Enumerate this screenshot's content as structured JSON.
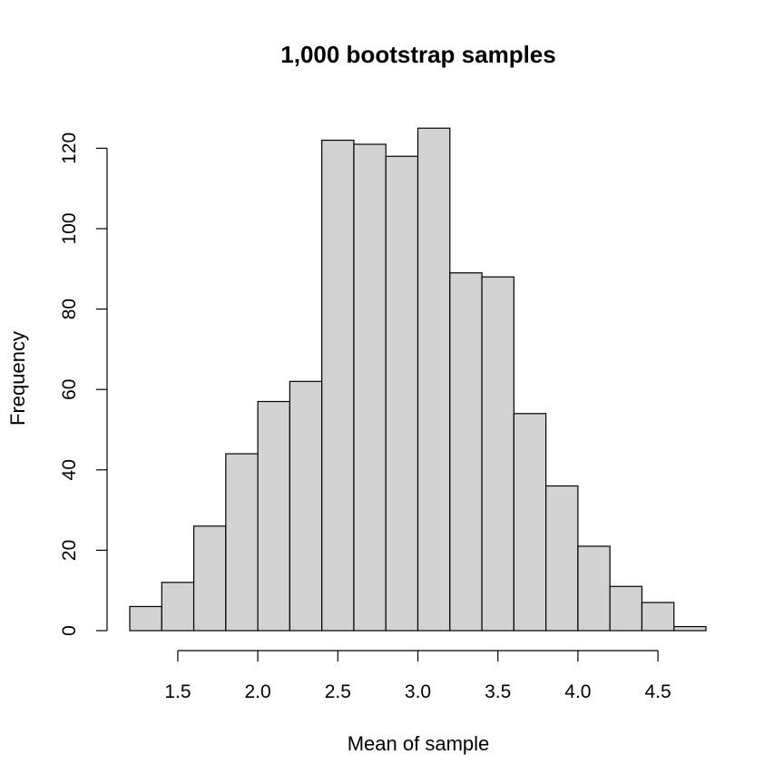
{
  "chart_data": {
    "type": "bar",
    "title": "1,000 bootstrap samples",
    "xlabel": "Mean of sample",
    "ylabel": "Frequency",
    "bin_edges": [
      1.2,
      1.4,
      1.6,
      1.8,
      2.0,
      2.2,
      2.4,
      2.6,
      2.8,
      3.0,
      3.2,
      3.4,
      3.6,
      3.8,
      4.0,
      4.2,
      4.4,
      4.6,
      4.8
    ],
    "values": [
      6,
      12,
      26,
      44,
      57,
      62,
      122,
      121,
      118,
      125,
      89,
      88,
      54,
      36,
      21,
      11,
      7,
      1
    ],
    "xlim": [
      1.2,
      4.8
    ],
    "ylim": [
      0,
      125
    ],
    "x_ticks": [
      1.5,
      2.0,
      2.5,
      3.0,
      3.5,
      4.0,
      4.5
    ],
    "x_tick_labels": [
      "1.5",
      "2.0",
      "2.5",
      "3.0",
      "3.5",
      "4.0",
      "4.5"
    ],
    "y_ticks": [
      0,
      20,
      40,
      60,
      80,
      100,
      120
    ],
    "y_tick_labels": [
      "0",
      "20",
      "40",
      "60",
      "80",
      "100",
      "120"
    ],
    "grid": false,
    "colors": {
      "bar_fill": "#d3d3d3",
      "bar_stroke": "#000000"
    }
  }
}
